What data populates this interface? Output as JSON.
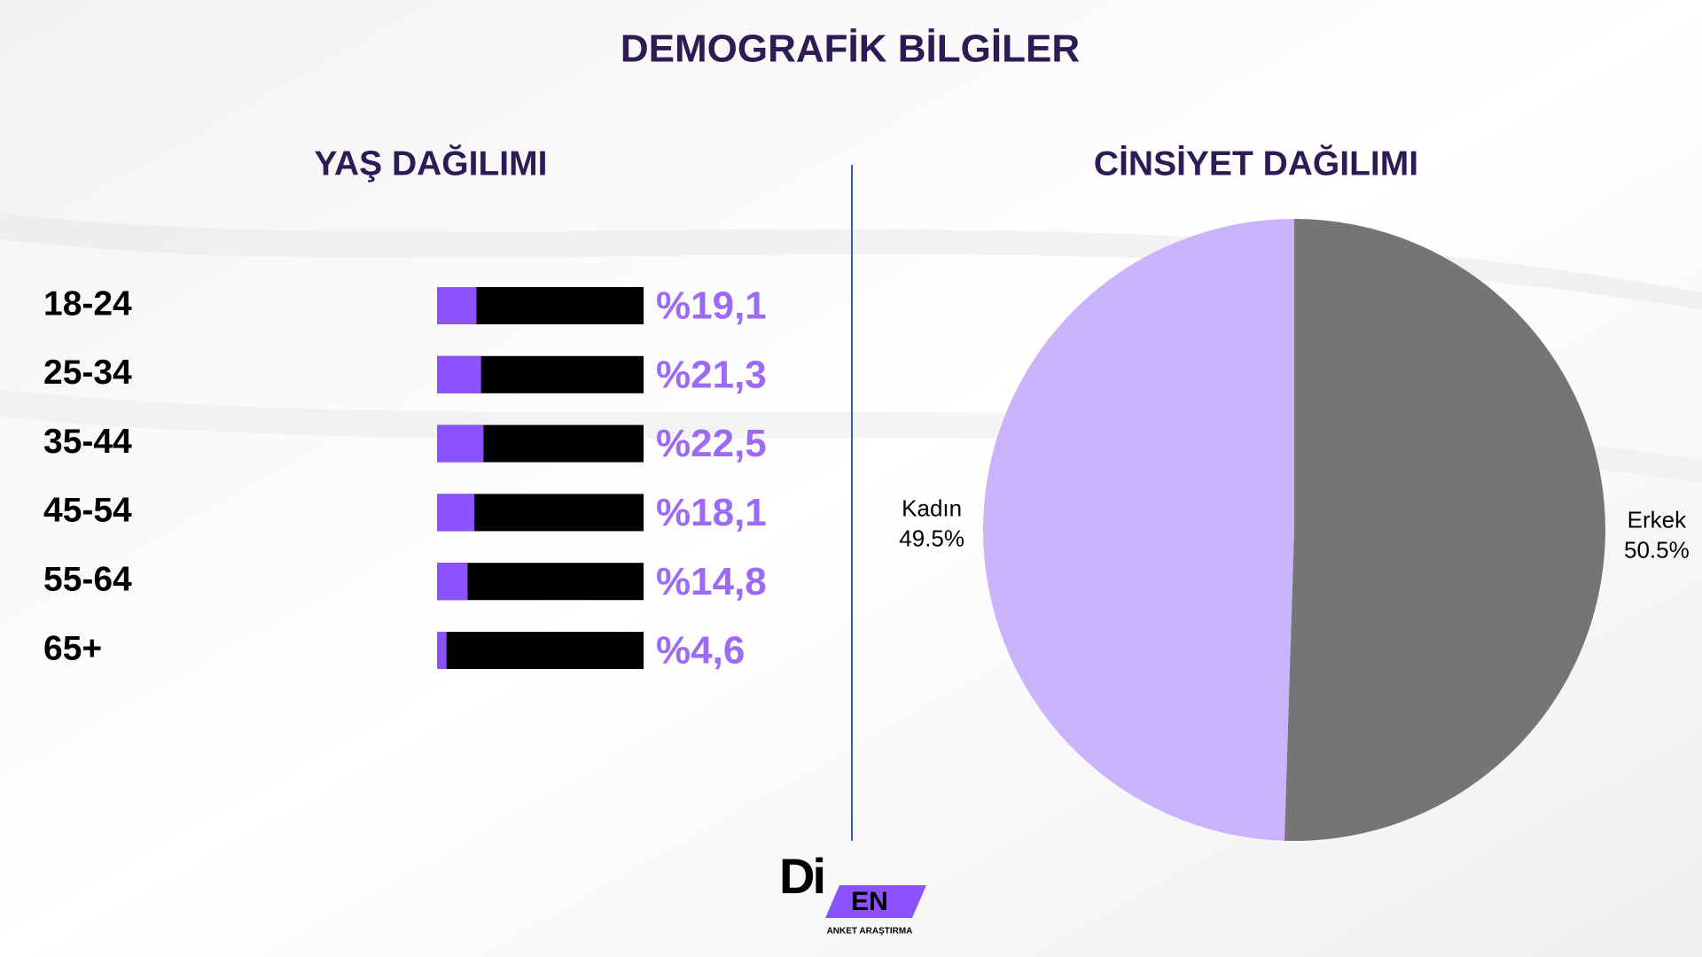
{
  "page": {
    "title": "DEMOGRAFİK BİLGİLER"
  },
  "chart_data": [
    {
      "type": "bar",
      "title": "YAŞ DAĞILIMI",
      "categories": [
        "18-24",
        "25-34",
        "35-44",
        "45-54",
        "55-64",
        "65+"
      ],
      "values": [
        19.1,
        21.3,
        22.5,
        18.1,
        14.8,
        4.6
      ],
      "value_labels": [
        "%19,1",
        "%21,3",
        "%22,5",
        "%18,1",
        "%14,8",
        "%4,6"
      ],
      "xlim": [
        0,
        100
      ],
      "color": "#8c52ff",
      "track_color": "#000000",
      "label_color": "#9d6af6"
    },
    {
      "type": "pie",
      "title": "CİNSİYET DAĞILIMI",
      "categories": [
        "Kadın",
        "Erkek"
      ],
      "values": [
        49.5,
        50.5
      ],
      "value_labels": [
        "49.5%",
        "50.5%"
      ],
      "colors": [
        "#cbb3fb",
        "#757575"
      ]
    }
  ],
  "logo": {
    "mark": "Di",
    "badge": "EN",
    "tagline": "ANKET ARAŞTIRMA"
  }
}
